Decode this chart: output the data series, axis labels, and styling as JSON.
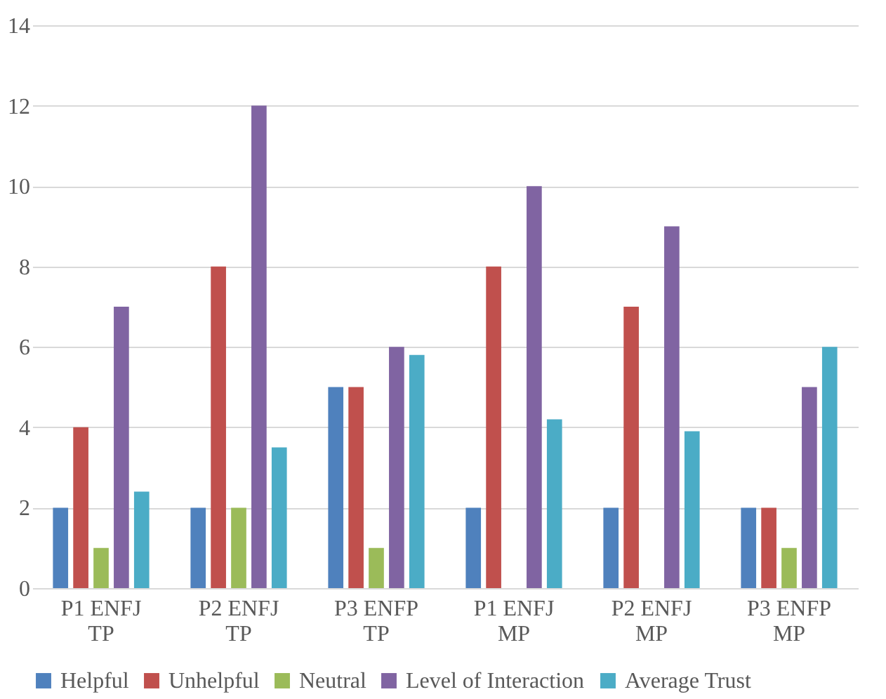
{
  "chart_data": {
    "type": "bar",
    "categories": [
      "P1 ENFJ TP",
      "P2 ENFJ TP",
      "P3 ENFP TP",
      "P1 ENFJ MP",
      "P2 ENFJ MP",
      "P3 ENFP MP"
    ],
    "series": [
      {
        "name": "Helpful",
        "color": "#4f81bd",
        "values": [
          2,
          2,
          5,
          2,
          2,
          2
        ]
      },
      {
        "name": "Unhelpful",
        "color": "#c0504d",
        "values": [
          4,
          8,
          5,
          8,
          7,
          2
        ]
      },
      {
        "name": "Neutral",
        "color": "#9bbb59",
        "values": [
          1,
          2,
          1,
          0,
          0,
          1
        ]
      },
      {
        "name": "Level of Interaction",
        "color": "#8064a2",
        "values": [
          7,
          12,
          6,
          10,
          9,
          5
        ]
      },
      {
        "name": "Average Trust",
        "color": "#4bacc6",
        "values": [
          2.4,
          3.5,
          5.8,
          4.2,
          3.9,
          6.0
        ]
      }
    ],
    "ylim": [
      0,
      14
    ],
    "yticks": [
      0,
      2,
      4,
      6,
      8,
      10,
      12,
      14
    ],
    "grid": "y",
    "legend": "bottom"
  }
}
